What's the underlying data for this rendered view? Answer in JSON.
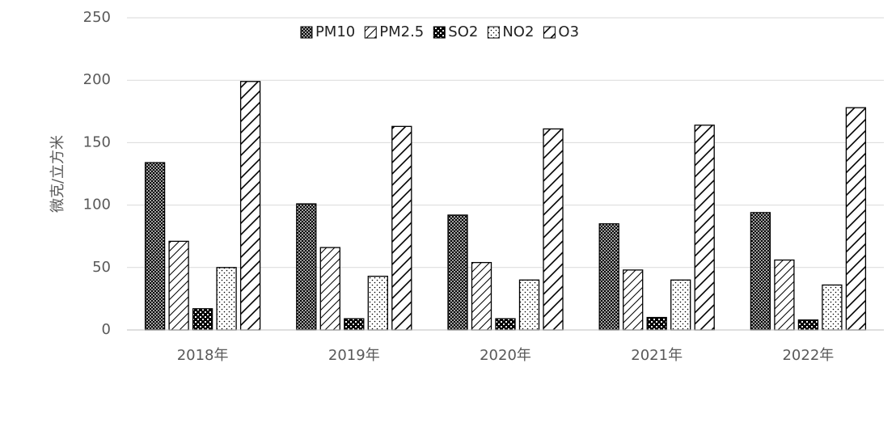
{
  "chart_data": {
    "type": "bar",
    "y_label": "微克/立方米",
    "categories": [
      "2018年",
      "2019年",
      "2020年",
      "2021年",
      "2022年"
    ],
    "series": [
      {
        "name": "PM10",
        "color": "#000000",
        "values": [
          134,
          101,
          92,
          85,
          94
        ]
      },
      {
        "name": "PM2.5",
        "color": "#000000",
        "values": [
          71,
          66,
          54,
          48,
          56
        ]
      },
      {
        "name": "SO2",
        "color": "#000000",
        "values": [
          17,
          9,
          9,
          10,
          8
        ]
      },
      {
        "name": "NO2",
        "color": "#000000",
        "values": [
          50,
          43,
          40,
          40,
          36
        ]
      },
      {
        "name": "O3",
        "color": "#000000",
        "values": [
          199,
          163,
          161,
          164,
          178
        ]
      }
    ],
    "ylim": [
      0,
      250
    ],
    "yticks": [
      0,
      50,
      100,
      150,
      200,
      250
    ],
    "grid": true,
    "legend": "top"
  }
}
